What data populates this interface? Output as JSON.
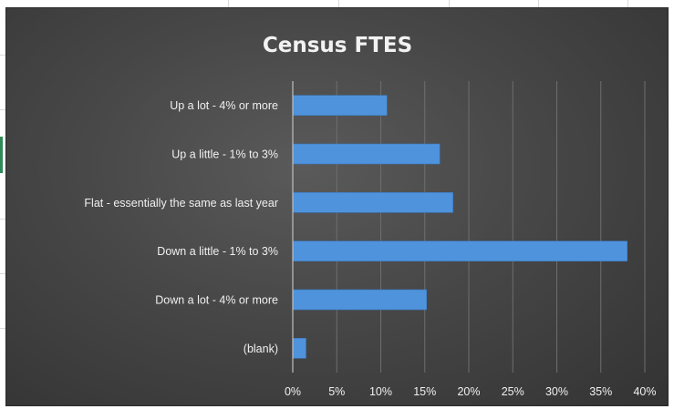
{
  "chart_data": {
    "type": "bar",
    "orientation": "horizontal",
    "title": "Census FTES",
    "xlabel": "",
    "ylabel": "",
    "categories": [
      "Up a lot - 4% or more",
      "Up a little - 1% to 3%",
      "Flat - essentially the same as last year",
      "Down a little - 1% to 3%",
      "Down a lot - 4% or more",
      "(blank)"
    ],
    "values": [
      10.7,
      16.7,
      18.2,
      38.0,
      15.2,
      1.5
    ],
    "xlim": [
      0,
      40
    ],
    "xticks": [
      0,
      5,
      10,
      15,
      20,
      25,
      30,
      35,
      40
    ],
    "xtick_labels": [
      "0%",
      "5%",
      "10%",
      "15%",
      "20%",
      "25%",
      "30%",
      "35%",
      "40%"
    ],
    "grid": true,
    "legend": "none",
    "bar_color": "#4f93dc",
    "background_color": "#474747"
  }
}
